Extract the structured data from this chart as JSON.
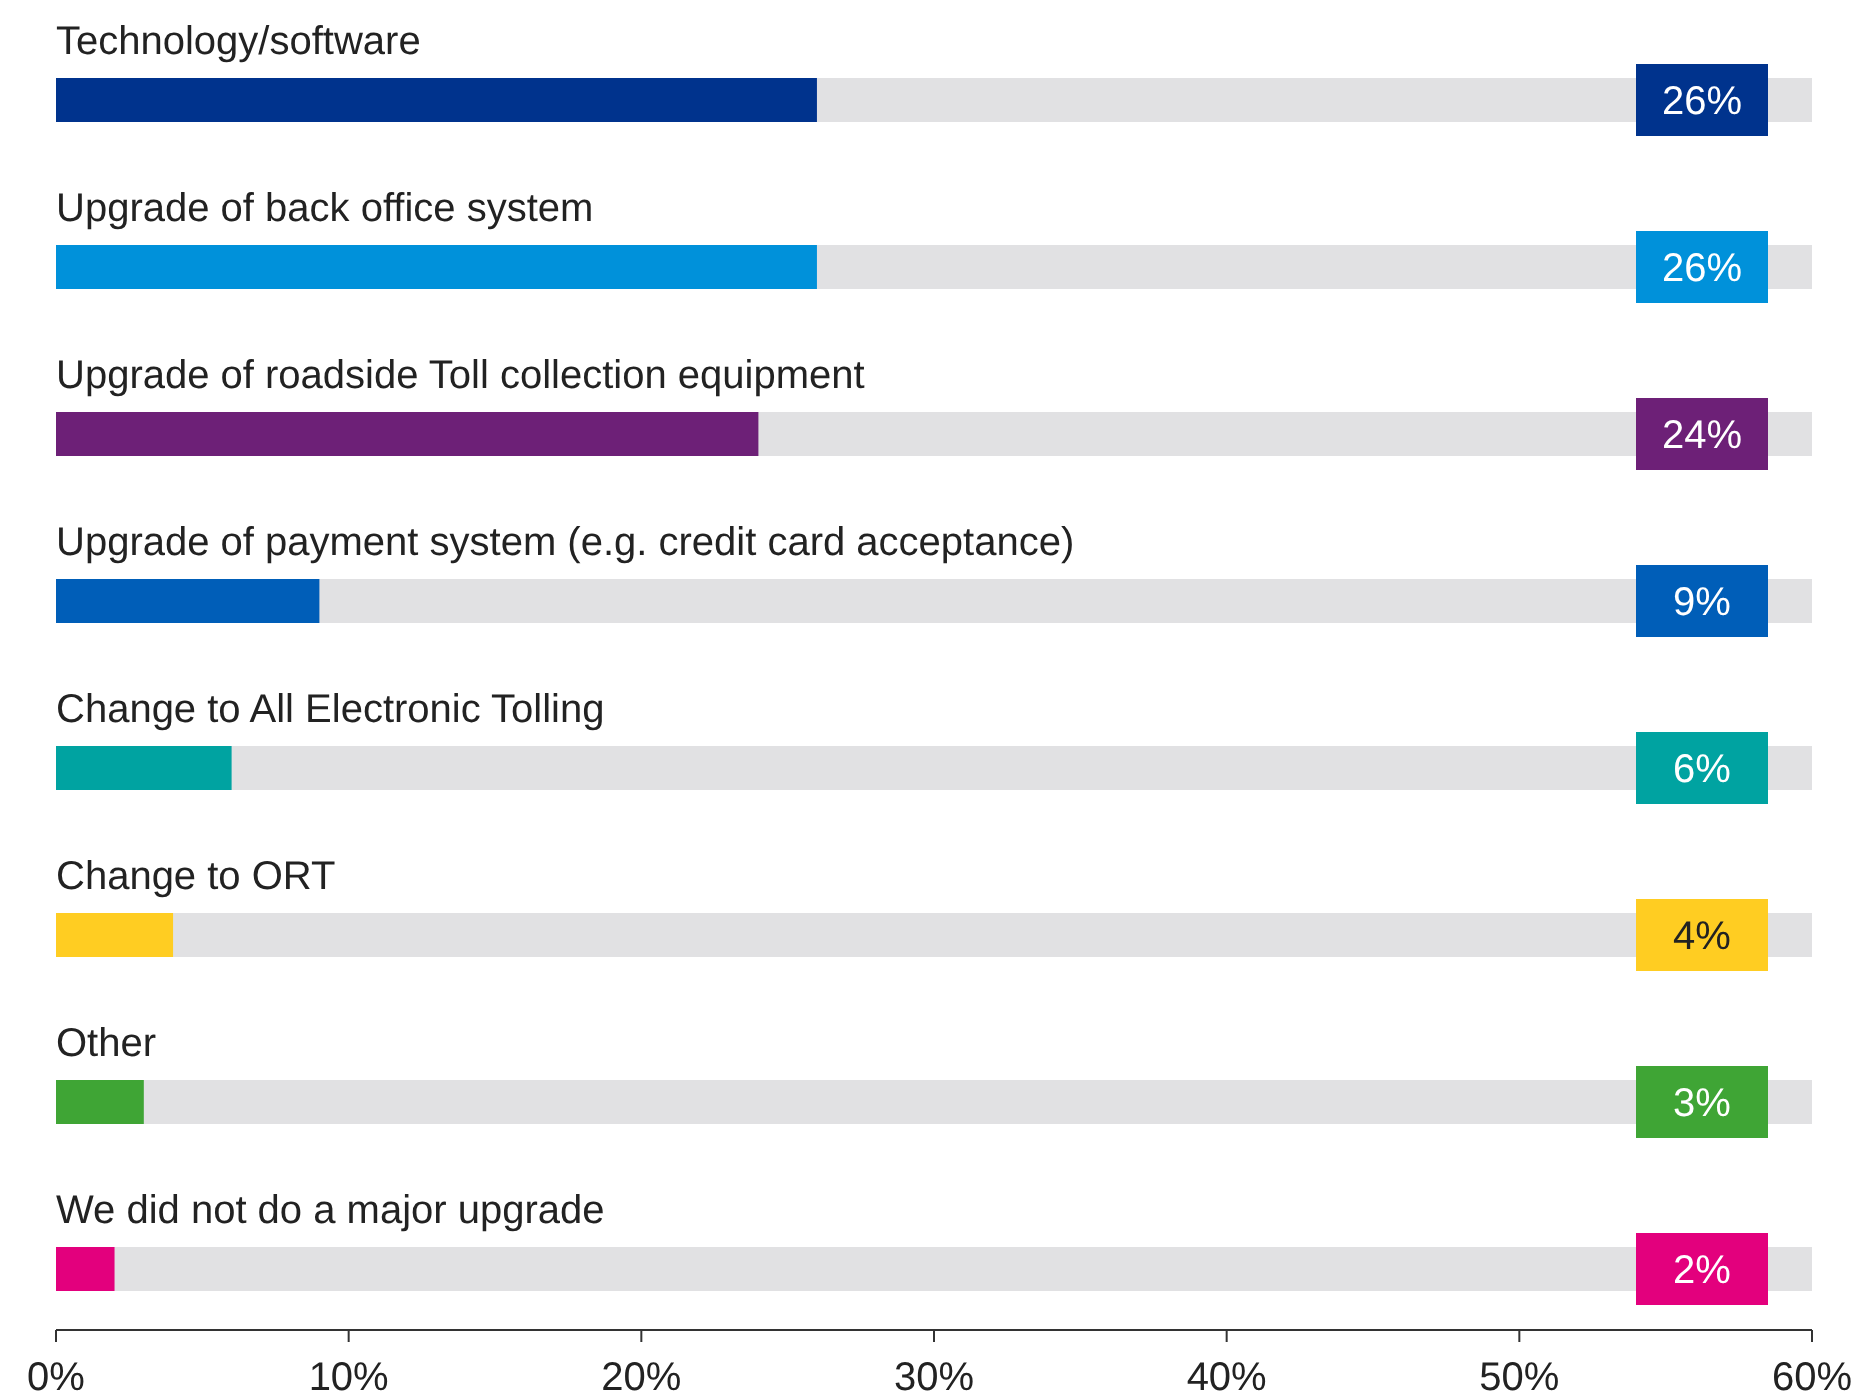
{
  "chart_data": {
    "type": "bar",
    "orientation": "horizontal",
    "categories": [
      "Technology/software",
      "Upgrade of back office system",
      "Upgrade of roadside Toll collection equipment",
      "Upgrade of payment system (e.g. credit card acceptance)",
      "Change to All Electronic Tolling",
      "Change to ORT",
      "Other",
      "We did not do a major upgrade"
    ],
    "values": [
      26,
      26,
      24,
      9,
      6,
      4,
      3,
      2
    ],
    "colors": [
      "#00338d",
      "#0091da",
      "#6d2077",
      "#005eb8",
      "#00a3a1",
      "#ffcd22",
      "#3fa535",
      "#e3007d"
    ],
    "value_labels": [
      "26%",
      "26%",
      "24%",
      "9%",
      "6%",
      "4%",
      "3%",
      "2%"
    ],
    "xlim": [
      0,
      60
    ],
    "xticks": [
      {
        "value": 0,
        "label": "0%"
      },
      {
        "value": 10,
        "label": "10%"
      },
      {
        "value": 20,
        "label": "20%"
      },
      {
        "value": 30,
        "label": "30%"
      },
      {
        "value": 40,
        "label": "40%"
      },
      {
        "value": 50,
        "label": "50%"
      },
      {
        "value": 60,
        "label": "60%"
      }
    ],
    "grid": false
  }
}
